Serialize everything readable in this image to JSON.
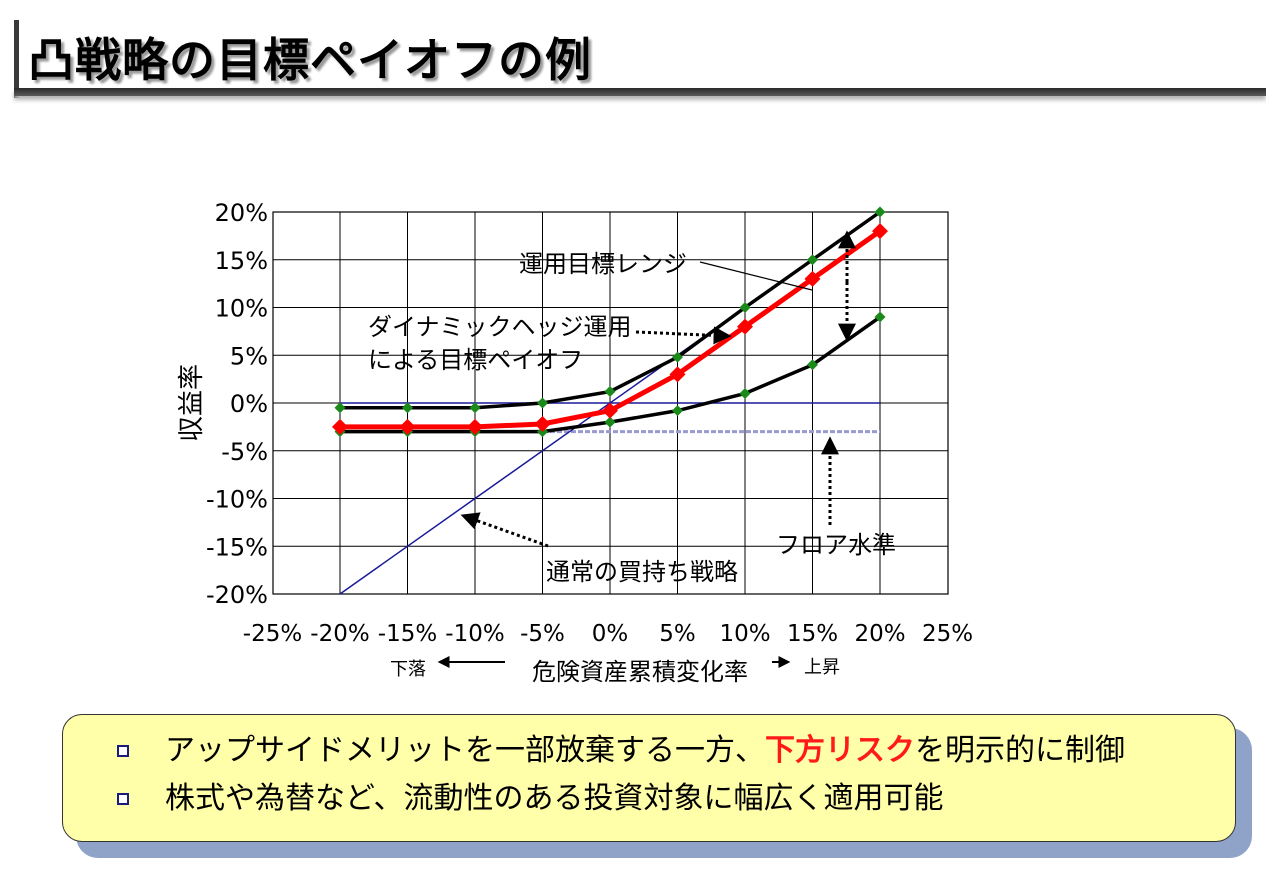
{
  "title": "凸戦略の目標ペイオフの例",
  "chart_data": {
    "type": "line",
    "xlabel": "危険資産累積変化率",
    "ylabel": "収益率",
    "xlim": [
      -25,
      25
    ],
    "ylim": [
      -20,
      20
    ],
    "x_ticks": [
      "-25%",
      "-20%",
      "-15%",
      "-10%",
      "-5%",
      "0%",
      "5%",
      "10%",
      "15%",
      "20%",
      "25%"
    ],
    "y_ticks": [
      "20%",
      "15%",
      "10%",
      "5%",
      "0%",
      "-5%",
      "-10%",
      "-15%",
      "-20%"
    ],
    "grid": true,
    "x_direction_left": "下落",
    "x_direction_right": "上昇",
    "series": [
      {
        "x": [
          -20,
          -15,
          -10,
          -5,
          0,
          5,
          10,
          15,
          20
        ],
        "y": [
          -0.5,
          -0.5,
          -0.5,
          0,
          1.2,
          4.8,
          10,
          15,
          20
        ]
      },
      {
        "x": [
          -20,
          -15,
          -10,
          -5,
          0,
          5,
          10,
          15,
          20
        ],
        "y": [
          -3,
          -3,
          -3,
          -3,
          -2,
          -0.8,
          1,
          4,
          9
        ]
      },
      {
        "x": [
          -20,
          -15,
          -10,
          -5,
          0,
          5,
          10,
          15,
          20
        ],
        "y": [
          -2.5,
          -2.5,
          -2.5,
          -2.2,
          -0.8,
          3,
          8,
          13,
          18
        ]
      },
      {
        "x": [
          -20,
          20
        ],
        "y": [
          -20,
          20
        ]
      },
      {
        "x": [
          -20,
          20
        ],
        "y": [
          0,
          0
        ]
      },
      {
        "x": [
          -20,
          20
        ],
        "y": [
          -3,
          -3
        ]
      }
    ],
    "annotations": [
      {
        "text": "運用目標レンジ"
      },
      {
        "text": "ダイナミックヘッジ運用"
      },
      {
        "text": "による目標ペイオフ"
      },
      {
        "text": "フロア水準"
      },
      {
        "text": "通常の買持ち戦略"
      }
    ],
    "colors": {
      "range_line": "#000000",
      "range_marker": "#1a8a1a",
      "target_line": "#ff0000",
      "buy_hold_line": "#1a1a9a",
      "floor_line": "#9a9ad0"
    }
  },
  "notes": [
    {
      "before": "アップサイドメリットを一部放棄する一方、",
      "highlight": "下方リスク",
      "after": "を明示的に制御"
    },
    {
      "before": "株式や為替など、流動性のある投資対象に幅広く適用可能",
      "highlight": "",
      "after": ""
    }
  ]
}
